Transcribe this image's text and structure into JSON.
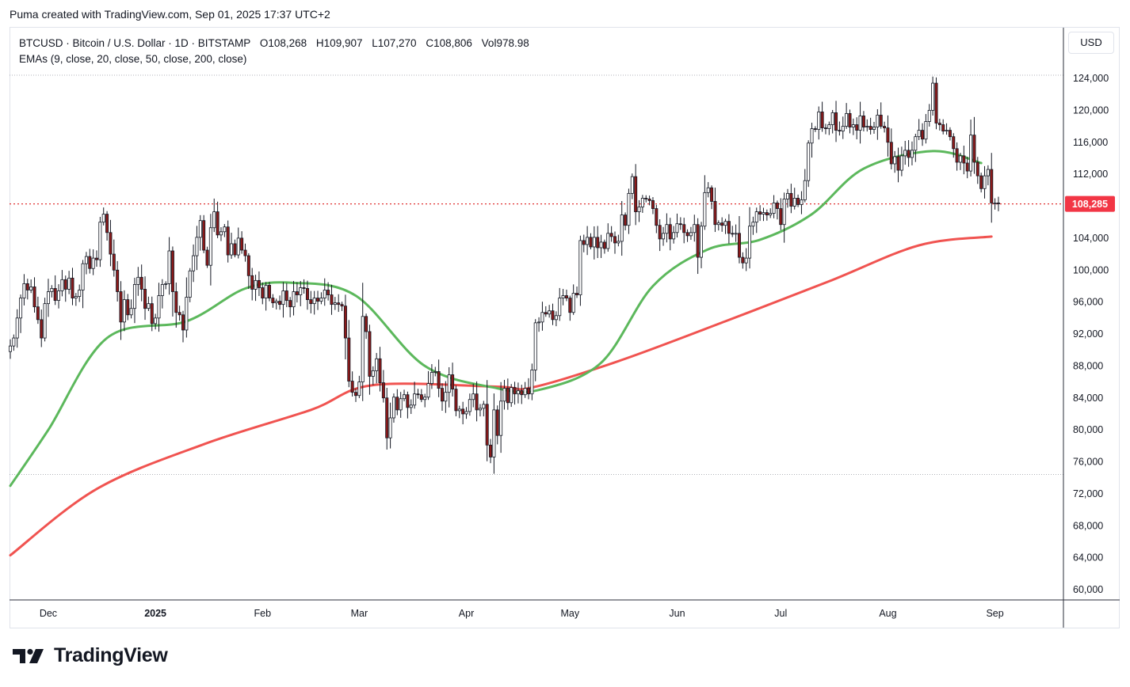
{
  "caption": "Puma created with TradingView.com, Sep 01, 2025 17:37 UTC+2",
  "legend": {
    "symbol_line": "BTCUSD · Bitcoin / U.S. Dollar · 1D · BITSTAMP",
    "open_label": "O",
    "open": "108,268",
    "high_label": "H",
    "high": "109,907",
    "low_label": "L",
    "low": "107,270",
    "close_label": "C",
    "close": "108,806",
    "vol_label": "Vol",
    "vol": "978.98",
    "emas_line": "EMAs (9, close, 20, close, 50, close, 200, close)"
  },
  "currency_button": "USD",
  "brand": {
    "name": "TradingView",
    "logo_icon": "tradingview-logo-icon"
  },
  "colors": {
    "up": "#131722",
    "down_body": "#8b1a1a",
    "ema50": "#5cb85c",
    "ema200": "#f05350",
    "price_line": "#e03131",
    "price_label_bg": "#f23645",
    "axis_text": "#131722"
  },
  "chart_data": {
    "type": "candlestick",
    "symbol": "BTCUSD",
    "timeframe": "1D",
    "ylim": [
      58000,
      124800
    ],
    "y_ticks": [
      "60,000",
      "64,000",
      "68,000",
      "72,000",
      "76,000",
      "80,000",
      "84,000",
      "88,000",
      "92,000",
      "96,000",
      "100,000",
      "104,000",
      "108,000",
      "112,000",
      "116,000",
      "120,000",
      "124,000"
    ],
    "y_tick_values": [
      60000,
      64000,
      68000,
      72000,
      76000,
      80000,
      84000,
      88000,
      92000,
      96000,
      100000,
      104000,
      108000,
      112000,
      116000,
      120000,
      124000
    ],
    "x_ticks": [
      "Dec",
      "2025",
      "Feb",
      "Mar",
      "Apr",
      "May",
      "Jun",
      "Jul",
      "Aug",
      "Sep"
    ],
    "x_tick_dates": [
      "2024-12-01",
      "2025-01-01",
      "2025-02-01",
      "2025-03-01",
      "2025-04-01",
      "2025-05-01",
      "2025-06-01",
      "2025-07-01",
      "2025-08-01",
      "2025-09-01"
    ],
    "start_date": "2024-11-20",
    "current_price": 108285,
    "current_price_label": "108,285",
    "dotted_levels": [
      124400,
      74400
    ],
    "closes": [
      90500,
      91500,
      94000,
      96500,
      98300,
      97500,
      97900,
      95400,
      93800,
      91500,
      95800,
      97300,
      97700,
      96200,
      97400,
      98800,
      97600,
      99000,
      96500,
      96700,
      97500,
      100800,
      101700,
      100200,
      101500,
      101300,
      106000,
      107000,
      104700,
      102000,
      100000,
      97300,
      93500,
      96300,
      94400,
      95200,
      98200,
      99100,
      97600,
      95200,
      95800,
      93300,
      94000,
      96800,
      98200,
      98300,
      102400,
      97300,
      94700,
      94400,
      92500,
      96600,
      99900,
      101800,
      104100,
      106200,
      102500,
      100600,
      105300,
      107300,
      104400,
      104800,
      105400,
      101900,
      103300,
      101900,
      104000,
      102500,
      101800,
      99300,
      97600,
      98700,
      97800,
      96500,
      98100,
      96500,
      95900,
      96100,
      95700,
      97400,
      96200,
      95400,
      97300,
      96900,
      97800,
      97700,
      96300,
      95800,
      96500,
      96100,
      96500,
      97500,
      96900,
      95700,
      95900,
      95700,
      95500,
      91500,
      86100,
      84700,
      84300,
      86000,
      94200,
      92300,
      86700,
      87400,
      88900,
      85900,
      84000,
      79000,
      81500,
      84100,
      82500,
      83900,
      84400,
      82800,
      83100,
      84500,
      84400,
      83800,
      84100,
      85800,
      87200,
      87300,
      85200,
      83600,
      84700,
      86900,
      85100,
      82400,
      82600,
      82000,
      82300,
      83800,
      84500,
      82500,
      82700,
      83200,
      78100,
      76600,
      82500,
      79300,
      83600,
      85200,
      83400,
      85300,
      84500,
      84900,
      84400,
      85200,
      84500,
      87500,
      93400,
      93500,
      94700,
      94500,
      94900,
      93800,
      94300,
      96500,
      96800,
      96500,
      94700,
      97100,
      96900,
      103700,
      103200,
      104100,
      102900,
      104100,
      102800,
      103500,
      102700,
      104600,
      104200,
      103400,
      103600,
      106900,
      105600,
      109600,
      111700,
      107300,
      107900,
      109000,
      108900,
      108700,
      107700,
      105600,
      103900,
      104600,
      105700,
      103900,
      104700,
      105800,
      105700,
      104700,
      104300,
      104700,
      105700,
      101600,
      105500,
      109700,
      110300,
      108600,
      105700,
      105900,
      105600,
      106100,
      104600,
      104500,
      104600,
      101600,
      100900,
      101500,
      105500,
      106000,
      107300,
      107000,
      107200,
      106900,
      107100,
      108400,
      107700,
      105700,
      108900,
      109600,
      108000,
      109000,
      108200,
      108800,
      111200,
      115900,
      117700,
      117600,
      119800,
      117800,
      117700,
      118200,
      119700,
      117500,
      117400,
      118000,
      119600,
      117900,
      118200,
      117500,
      119300,
      117900,
      118000,
      117600,
      117900,
      119400,
      118000,
      117800,
      116000,
      113300,
      114200,
      112500,
      114300,
      115000,
      114100,
      115000,
      116700,
      117500,
      116400,
      118600,
      120000,
      123400,
      118400,
      118200,
      117400,
      117500,
      116700,
      115200,
      113500,
      114300,
      113400,
      112400,
      116900,
      113500,
      111800,
      110200,
      111800,
      112600,
      108400,
      108400,
      108300
    ],
    "ema50_anchor": {
      "dates": [
        "2024-11-20",
        "2024-12-01",
        "2024-12-18",
        "2025-01-10",
        "2025-01-27",
        "2025-02-10",
        "2025-02-28",
        "2025-03-20",
        "2025-04-10",
        "2025-04-22",
        "2025-05-10",
        "2025-05-25",
        "2025-06-10",
        "2025-06-25",
        "2025-07-10",
        "2025-07-25",
        "2025-08-14",
        "2025-08-28"
      ],
      "values": [
        73000,
        80000,
        91500,
        93600,
        97700,
        98400,
        96800,
        88000,
        85200,
        85000,
        88400,
        98000,
        102600,
        103800,
        107000,
        112700,
        114900,
        113400
      ]
    },
    "ema200_anchor": {
      "dates": [
        "2024-11-20",
        "2024-12-15",
        "2025-01-15",
        "2025-02-15",
        "2025-03-05",
        "2025-04-10",
        "2025-04-20",
        "2025-05-15",
        "2025-06-15",
        "2025-07-15",
        "2025-08-10",
        "2025-08-31"
      ],
      "values": [
        64300,
        72600,
        78200,
        82500,
        85600,
        85400,
        85300,
        88600,
        93600,
        98600,
        103100,
        104200
      ]
    }
  }
}
